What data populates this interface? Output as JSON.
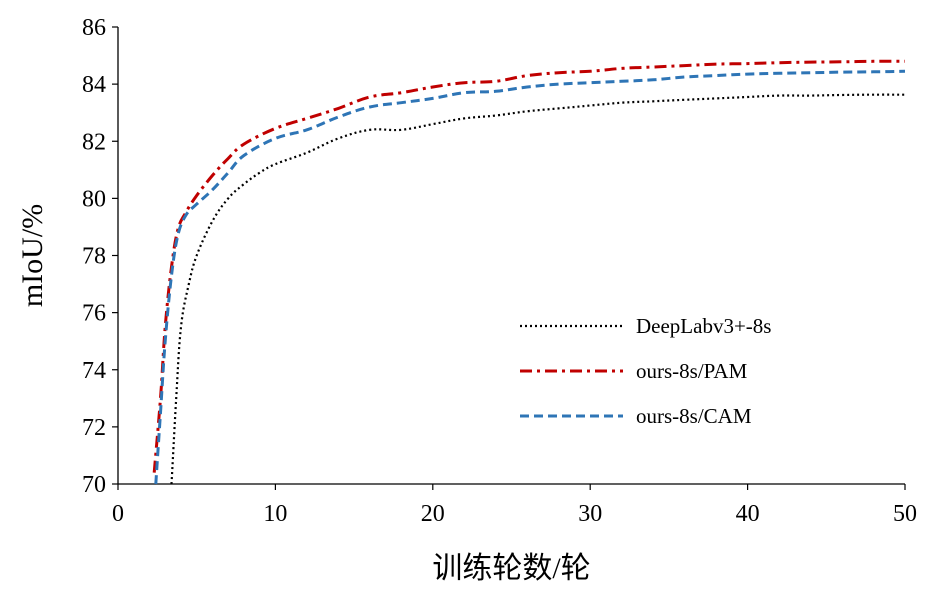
{
  "chart_data": {
    "type": "line",
    "xlabel": "训练轮数/轮",
    "ylabel": "mIoU/%",
    "xlim": [
      0,
      50
    ],
    "ylim": [
      70,
      86
    ],
    "xticks": [
      0,
      10,
      20,
      30,
      40,
      50
    ],
    "yticks": [
      70,
      72,
      74,
      76,
      78,
      80,
      82,
      84,
      86
    ],
    "x_tick_labels": [
      "0",
      "10",
      "20",
      "30",
      "40",
      "50"
    ],
    "y_tick_labels": [
      "70",
      "72",
      "74",
      "76",
      "78",
      "80",
      "82",
      "84",
      "86"
    ],
    "grid": false,
    "legend_position": "center-right",
    "series": [
      {
        "name": "DeepLabv3+-8s",
        "color": "#000000",
        "dash": "dotted",
        "x": [
          3.4,
          3.7,
          4.0,
          4.5,
          5,
          6,
          7,
          8,
          9,
          10,
          12,
          14,
          16,
          18,
          20,
          22,
          24,
          26,
          28,
          30,
          32,
          34,
          36,
          38,
          40,
          42,
          44,
          46,
          48,
          50
        ],
        "y": [
          70.0,
          73.0,
          75.5,
          77.0,
          78.0,
          79.2,
          80.0,
          80.5,
          80.9,
          81.2,
          81.6,
          82.1,
          82.4,
          82.4,
          82.6,
          82.8,
          82.9,
          83.05,
          83.15,
          83.25,
          83.35,
          83.4,
          83.45,
          83.5,
          83.55,
          83.6,
          83.6,
          83.62,
          83.63,
          83.63
        ]
      },
      {
        "name": "ours-8s/PAM",
        "color": "#C00000",
        "dash": "dashdot",
        "x": [
          2.3,
          2.7,
          3.0,
          3.4,
          3.8,
          4.3,
          5,
          6,
          7,
          8,
          10,
          12,
          14,
          16,
          18,
          20,
          22,
          24,
          26,
          28,
          30,
          32,
          34,
          36,
          38,
          40,
          42,
          44,
          46,
          48,
          50
        ],
        "y": [
          70.4,
          73.0,
          75.5,
          77.6,
          78.9,
          79.5,
          80.1,
          80.8,
          81.4,
          81.9,
          82.45,
          82.8,
          83.15,
          83.55,
          83.7,
          83.9,
          84.05,
          84.1,
          84.3,
          84.4,
          84.45,
          84.55,
          84.6,
          84.65,
          84.7,
          84.72,
          84.75,
          84.77,
          84.78,
          84.8,
          84.8
        ]
      },
      {
        "name": "ours-8s/CAM",
        "color": "#2E75B6",
        "dash": "dashed",
        "x": [
          2.4,
          2.7,
          3.0,
          3.4,
          3.8,
          4.3,
          5,
          6,
          7,
          8,
          10,
          12,
          14,
          16,
          18,
          20,
          22,
          24,
          26,
          28,
          30,
          32,
          34,
          36,
          38,
          40,
          42,
          44,
          46,
          48,
          50
        ],
        "y": [
          70.0,
          72.5,
          75.0,
          77.3,
          78.7,
          79.4,
          79.8,
          80.3,
          80.9,
          81.5,
          82.1,
          82.4,
          82.85,
          83.2,
          83.35,
          83.5,
          83.7,
          83.75,
          83.9,
          84.0,
          84.05,
          84.1,
          84.15,
          84.25,
          84.3,
          84.35,
          84.38,
          84.4,
          84.42,
          84.43,
          84.45
        ]
      }
    ]
  }
}
